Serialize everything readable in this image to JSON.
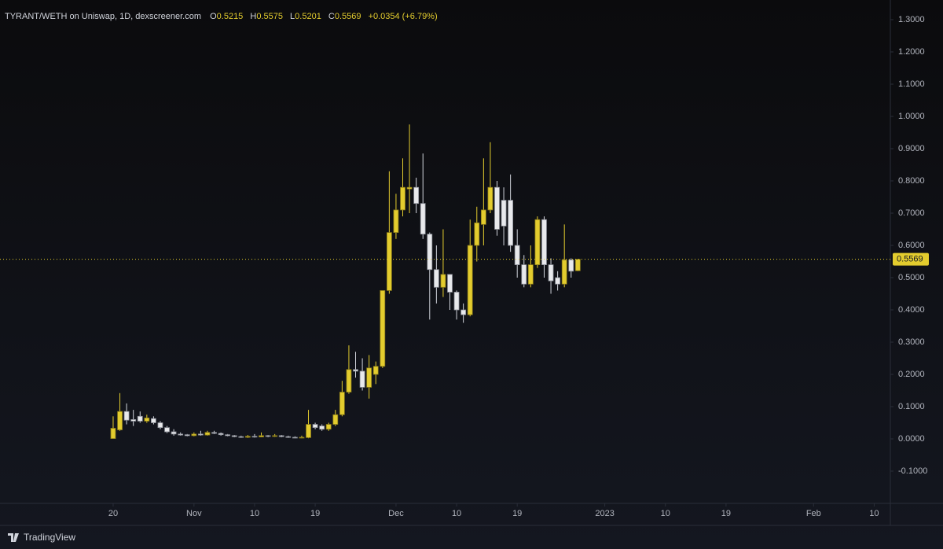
{
  "chart_data": {
    "type": "candlestick",
    "title": "TYRANT/WETH on Uniswap, 1D, dexscreener.com",
    "ohlc_legend": {
      "open_label": "O",
      "open": "0.5215",
      "high_label": "H",
      "high": "0.5575",
      "low_label": "L",
      "low": "0.5201",
      "close_label": "C",
      "close": "0.5569",
      "change": "+0.0354 (+6.79%)"
    },
    "up_color": "#e3cc2e",
    "down_color": "#d1d4dc",
    "x": [
      0,
      1,
      2,
      3,
      4,
      5,
      6,
      7,
      8,
      9,
      10,
      11,
      12,
      13,
      14,
      15,
      16,
      17,
      18,
      19,
      20,
      21,
      22,
      23,
      24,
      25,
      26,
      27,
      28,
      29,
      30,
      31,
      32,
      33,
      34,
      35,
      36,
      37,
      38,
      39,
      40,
      41,
      42,
      43,
      44,
      45,
      46,
      47,
      48,
      49,
      50,
      51,
      52,
      53,
      54,
      55,
      56,
      57,
      58,
      59,
      60,
      61,
      62,
      63,
      64,
      65,
      66,
      67,
      68,
      69
    ],
    "open": [
      0.001,
      0.028,
      0.085,
      0.06,
      0.07,
      0.055,
      0.063,
      0.05,
      0.035,
      0.022,
      0.015,
      0.013,
      0.01,
      0.015,
      0.012,
      0.02,
      0.017,
      0.013,
      0.01,
      0.007,
      0.005,
      0.008,
      0.006,
      0.01,
      0.008,
      0.01,
      0.007,
      0.005,
      0.004,
      0.004,
      0.045,
      0.04,
      0.03,
      0.045,
      0.075,
      0.145,
      0.215,
      0.21,
      0.16,
      0.2,
      0.225,
      0.46,
      0.64,
      0.71,
      0.775,
      0.78,
      0.73,
      0.635,
      0.525,
      0.47,
      0.51,
      0.455,
      0.4,
      0.385,
      0.6,
      0.665,
      0.71,
      0.78,
      0.74,
      0.74,
      0.6,
      0.54,
      0.48,
      0.54,
      0.68,
      0.54,
      0.5,
      0.48,
      0.555,
      0.5215
    ],
    "high": [
      0.07,
      0.142,
      0.11,
      0.09,
      0.085,
      0.075,
      0.07,
      0.055,
      0.04,
      0.03,
      0.02,
      0.015,
      0.02,
      0.025,
      0.025,
      0.025,
      0.02,
      0.015,
      0.012,
      0.01,
      0.012,
      0.015,
      0.02,
      0.012,
      0.015,
      0.012,
      0.01,
      0.008,
      0.01,
      0.09,
      0.05,
      0.045,
      0.05,
      0.09,
      0.18,
      0.29,
      0.27,
      0.25,
      0.26,
      0.24,
      0.46,
      0.83,
      0.76,
      0.87,
      0.975,
      0.81,
      0.885,
      0.64,
      0.6,
      0.65,
      0.51,
      0.46,
      0.42,
      0.68,
      0.72,
      0.87,
      0.92,
      0.8,
      0.78,
      0.82,
      0.65,
      0.57,
      0.6,
      0.69,
      0.69,
      0.56,
      0.52,
      0.665,
      0.56,
      0.5575
    ],
    "low": [
      0,
      0.025,
      0.045,
      0.04,
      0.05,
      0.05,
      0.045,
      0.03,
      0.018,
      0.01,
      0.01,
      0.008,
      0.008,
      0.01,
      0.01,
      0.015,
      0.01,
      0.008,
      0.005,
      0.003,
      0.003,
      0.004,
      0.005,
      0.005,
      0.006,
      0.005,
      0.003,
      0.002,
      0.002,
      0.002,
      0.03,
      0.025,
      0.025,
      0.04,
      0.07,
      0.14,
      0.19,
      0.15,
      0.125,
      0.17,
      0.22,
      0.45,
      0.62,
      0.69,
      0.7,
      0.7,
      0.62,
      0.37,
      0.42,
      0.44,
      0.4,
      0.37,
      0.36,
      0.38,
      0.55,
      0.6,
      0.7,
      0.63,
      0.6,
      0.58,
      0.5,
      0.47,
      0.47,
      0.53,
      0.5,
      0.45,
      0.46,
      0.47,
      0.5,
      0.5201
    ],
    "close": [
      0.033,
      0.085,
      0.058,
      0.055,
      0.055,
      0.065,
      0.05,
      0.035,
      0.022,
      0.015,
      0.012,
      0.01,
      0.015,
      0.012,
      0.02,
      0.017,
      0.013,
      0.01,
      0.007,
      0.005,
      0.008,
      0.006,
      0.01,
      0.008,
      0.01,
      0.007,
      0.005,
      0.004,
      0.005,
      0.045,
      0.035,
      0.03,
      0.045,
      0.075,
      0.145,
      0.215,
      0.21,
      0.16,
      0.22,
      0.225,
      0.46,
      0.64,
      0.71,
      0.78,
      0.78,
      0.73,
      0.635,
      0.525,
      0.47,
      0.51,
      0.455,
      0.4,
      0.385,
      0.6,
      0.67,
      0.71,
      0.78,
      0.65,
      0.66,
      0.6,
      0.54,
      0.48,
      0.54,
      0.68,
      0.54,
      0.49,
      0.48,
      0.555,
      0.52,
      0.5569
    ],
    "xlim": [
      -16.8,
      115.4
    ],
    "xticks": [
      {
        "value": 0,
        "label": "20"
      },
      {
        "value": 12,
        "label": "Nov"
      },
      {
        "value": 21,
        "label": "10"
      },
      {
        "value": 30,
        "label": "19"
      },
      {
        "value": 42,
        "label": "Dec"
      },
      {
        "value": 51,
        "label": "10"
      },
      {
        "value": 60,
        "label": "19"
      },
      {
        "value": 73,
        "label": "2023"
      },
      {
        "value": 82,
        "label": "10"
      },
      {
        "value": 91,
        "label": "19"
      },
      {
        "value": 104,
        "label": "Feb"
      },
      {
        "value": 113,
        "label": "10"
      }
    ],
    "ylim": [
      -0.2,
      1.361
    ],
    "yticks": [
      {
        "value": -0.1,
        "label": "-0.1000"
      },
      {
        "value": 0,
        "label": "0.0000"
      },
      {
        "value": 0.1,
        "label": "0.1000"
      },
      {
        "value": 0.2,
        "label": "0.2000"
      },
      {
        "value": 0.3,
        "label": "0.3000"
      },
      {
        "value": 0.4,
        "label": "0.4000"
      },
      {
        "value": 0.5,
        "label": "0.5000"
      },
      {
        "value": 0.6,
        "label": "0.6000"
      },
      {
        "value": 0.7,
        "label": "0.7000"
      },
      {
        "value": 0.8,
        "label": "0.8000"
      },
      {
        "value": 0.9,
        "label": "0.9000"
      },
      {
        "value": 1,
        "label": "1.0000"
      },
      {
        "value": 1.1,
        "label": "1.1000"
      },
      {
        "value": 1.2,
        "label": "1.2000"
      },
      {
        "value": 1.3,
        "label": "1.3000"
      }
    ],
    "last_price": {
      "value": 0.5569,
      "label": "0.5569"
    }
  },
  "brand": "TradingView"
}
